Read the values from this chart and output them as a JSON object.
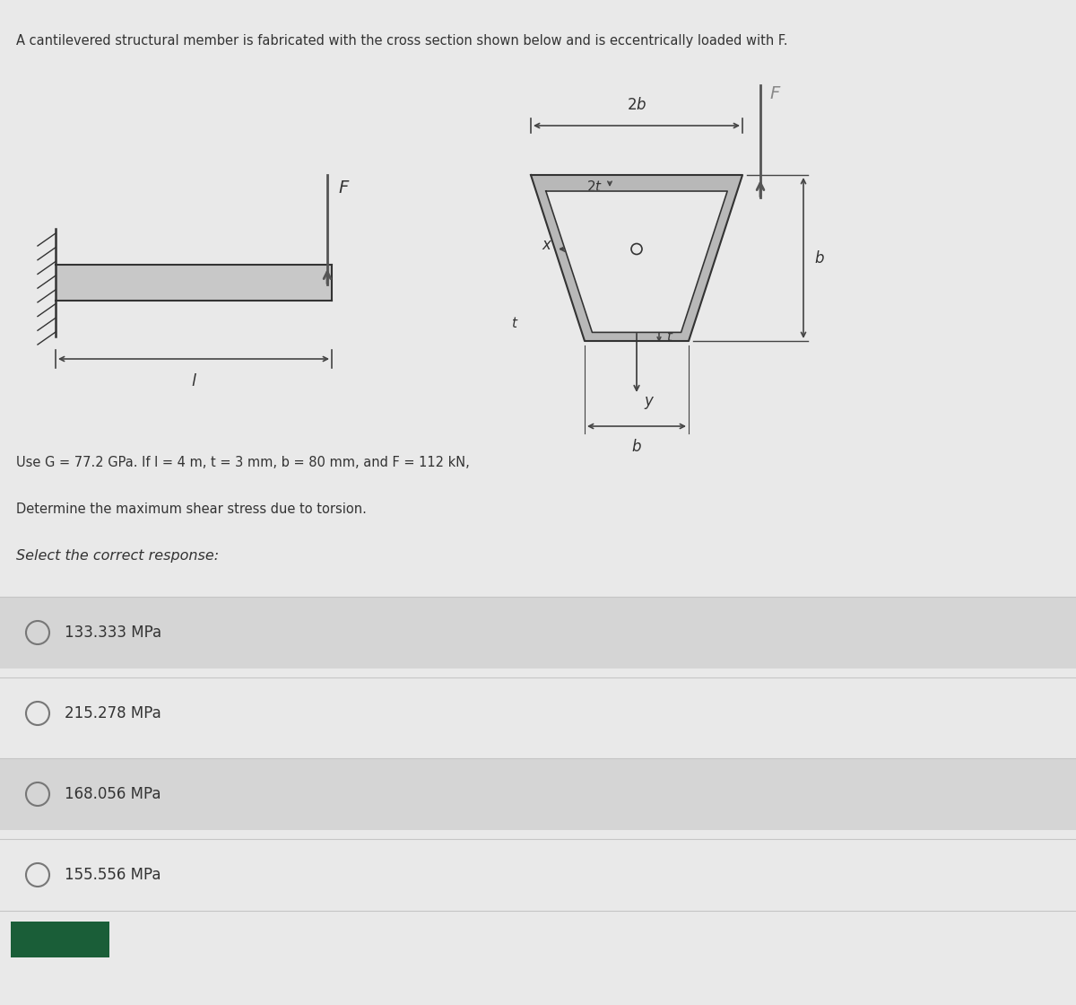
{
  "bg_color": "#e9e9e9",
  "header_text": "A cantilevered structural member is fabricated with the cross section shown below and is eccentrically loaded with F.",
  "given_text": "Use G = 77.2 GPa. If l = 4 m, t = 3 mm, b = 80 mm, and F = 112 kN,",
  "determine_text": "Determine the maximum shear stress due to torsion.",
  "select_text": "Select the correct response:",
  "options": [
    "133.333 MPa",
    "215.278 MPa",
    "168.056 MPa",
    "155.556 MPa"
  ],
  "option_bg_colors": [
    "#d5d5d5",
    "#e9e9e9",
    "#d5d5d5",
    "#e9e9e9"
  ],
  "divider_color": "#c5c5c5",
  "text_color": "#333333",
  "dim_color": "#444444",
  "arrow_color": "#555555",
  "beam_fill": "#c8c8c8",
  "trap_fill": "#b8b8b8",
  "trap_inner_fill": "#d0d0d0"
}
